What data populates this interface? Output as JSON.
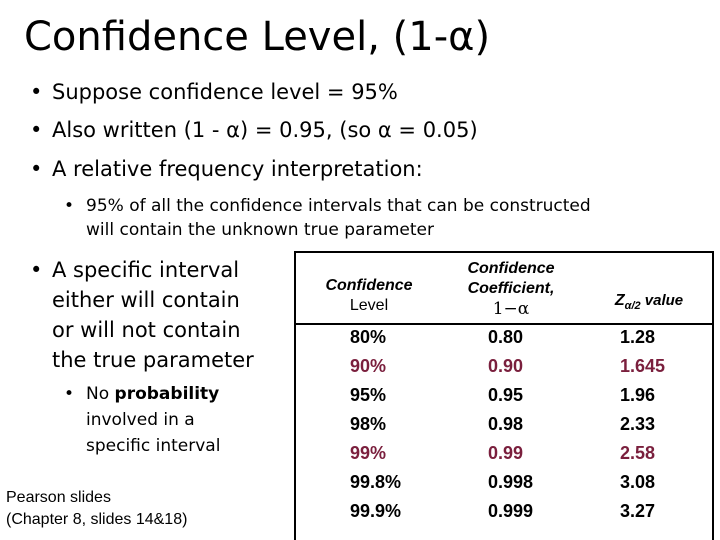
{
  "title": "Confidence Level, (1-α)",
  "bullets": [
    "Suppose confidence level = 95%",
    "Also written (1 - α) = 0.95, (so α = 0.05)",
    "A relative frequency interpretation:"
  ],
  "sub_bullet_1": {
    "line1": "95% of all the confidence intervals that can be constructed",
    "line2": "will contain the unknown true parameter"
  },
  "left_bullet": {
    "line1": "A specific interval",
    "line2": "either will contain",
    "line3": "or will not contain",
    "line4": "the true parameter"
  },
  "left_sub_bullet": {
    "prefix": "No ",
    "bold": "probability",
    "line2": "involved in a",
    "line3": "specific interval"
  },
  "footnote": {
    "line1": "Pearson slides",
    "line2": "(Chapter 8, slides 14&18)"
  },
  "table": {
    "headers": {
      "level_line1": "Confidence",
      "level_line2": "Level",
      "coef_line1": "Confidence",
      "coef_line2": "Coefficient,",
      "coef_line3": "1−α",
      "z_label": "Z",
      "z_sub": "α/2",
      "z_suffix": " value"
    },
    "rows": [
      {
        "level": "80%",
        "coef": "0.80",
        "z": "1.28"
      },
      {
        "level": "90%",
        "coef": "0.90",
        "z": "1.645"
      },
      {
        "level": "95%",
        "coef": "0.95",
        "z": "1.96"
      },
      {
        "level": "98%",
        "coef": "0.98",
        "z": "2.33"
      },
      {
        "level": "99%",
        "coef": "0.99",
        "z": "2.58"
      },
      {
        "level": "99.8%",
        "coef": "0.998",
        "z": "3.08"
      },
      {
        "level": "99.9%",
        "coef": "0.999",
        "z": "3.27"
      }
    ]
  }
}
